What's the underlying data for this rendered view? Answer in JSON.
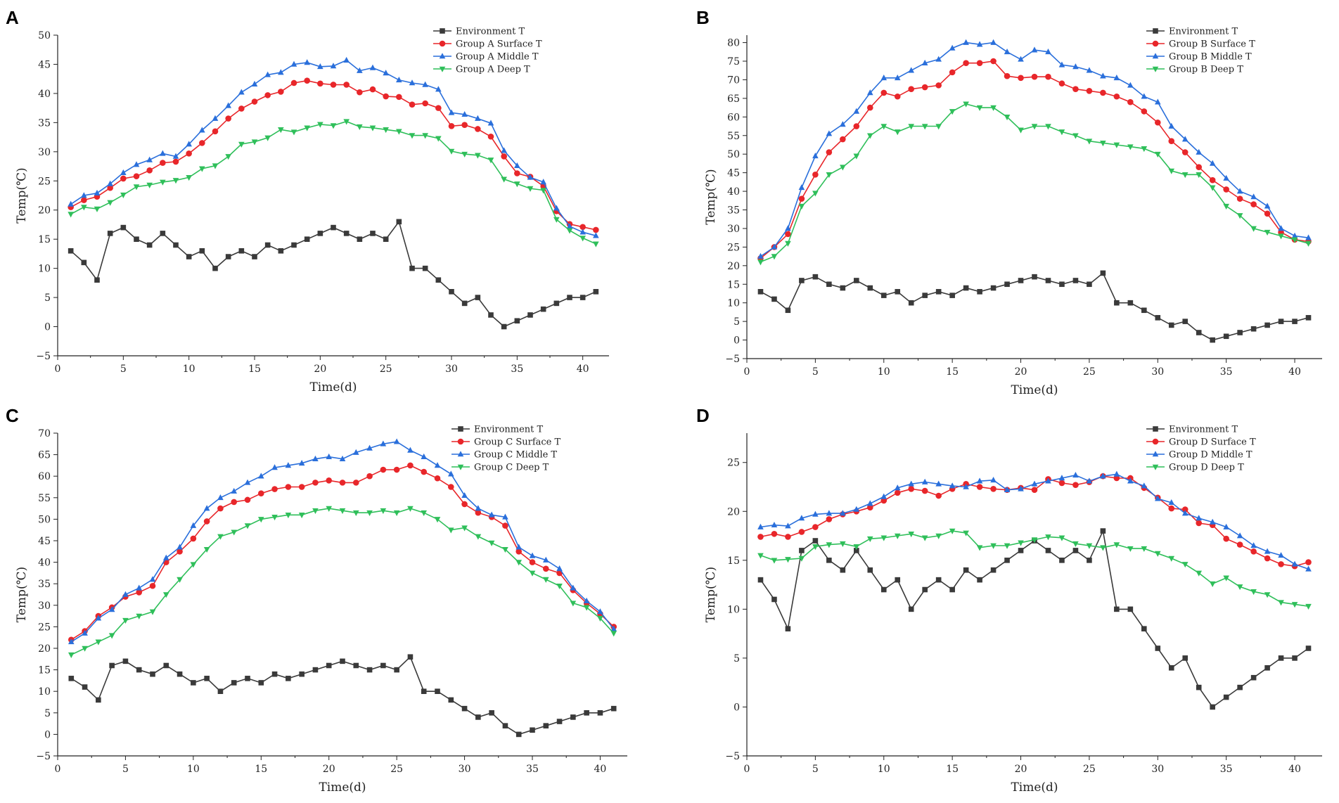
{
  "colors": {
    "environment": "#3a3a3a",
    "surface": "#e8262a",
    "middle": "#2a6fdb",
    "deep": "#2fbf5a"
  },
  "chart_data": [
    {
      "panel": "A",
      "type": "line",
      "xlabel": "Time(d)",
      "ylabel": "Temp(℃)",
      "xlim": [
        0,
        42
      ],
      "ylim": [
        -5,
        50
      ],
      "xticks": [
        0,
        5,
        10,
        15,
        20,
        25,
        30,
        35,
        40
      ],
      "yticks": [
        -5,
        0,
        5,
        10,
        15,
        20,
        25,
        30,
        35,
        40,
        45,
        50
      ],
      "legend": "top-right",
      "x": [
        1,
        2,
        3,
        4,
        5,
        6,
        7,
        8,
        9,
        10,
        11,
        12,
        13,
        14,
        15,
        16,
        17,
        18,
        19,
        20,
        21,
        22,
        23,
        24,
        25,
        26,
        27,
        28,
        29,
        30,
        31,
        32,
        33,
        34,
        35,
        36,
        37,
        38,
        39,
        40,
        41
      ],
      "series": [
        {
          "name": "Environment T",
          "key": "environment",
          "marker": "square",
          "values": [
            13,
            11,
            8,
            16,
            17,
            15,
            14,
            16,
            14,
            12,
            13,
            10,
            12,
            13,
            12,
            14,
            13,
            14,
            15,
            16,
            17,
            16,
            15,
            16,
            15,
            18,
            10,
            10,
            8,
            6,
            4,
            5,
            2,
            0,
            1,
            2,
            3,
            4,
            5,
            5,
            6
          ]
        },
        {
          "name": "Group A Surface T",
          "key": "surface",
          "marker": "circle",
          "values": [
            20.5,
            21.7,
            22.3,
            23.8,
            25.4,
            25.8,
            26.8,
            28.1,
            28.3,
            29.7,
            31.5,
            33.5,
            35.7,
            37.4,
            38.6,
            39.7,
            40.3,
            41.8,
            42.2,
            41.7,
            41.5,
            41.5,
            40.2,
            40.7,
            39.5,
            39.4,
            38.1,
            38.3,
            37.5,
            34.4,
            34.6,
            33.9,
            32.6,
            29.2,
            26.3,
            25.7,
            24.1,
            19.8,
            17.6,
            17.1,
            16.6
          ]
        },
        {
          "name": "Group A Middle T",
          "key": "middle",
          "marker": "triangle-up",
          "values": [
            21.0,
            22.5,
            22.9,
            24.5,
            26.4,
            27.8,
            28.6,
            29.7,
            29.2,
            31.3,
            33.7,
            35.7,
            37.9,
            40.2,
            41.6,
            43.2,
            43.6,
            45.0,
            45.3,
            44.6,
            44.7,
            45.7,
            43.9,
            44.4,
            43.5,
            42.3,
            41.8,
            41.5,
            40.7,
            36.7,
            36.4,
            35.7,
            34.9,
            30.2,
            27.6,
            25.6,
            24.8,
            20.3,
            17.2,
            16.2,
            15.6
          ]
        },
        {
          "name": "Group A Deep T",
          "key": "deep",
          "marker": "triangle-down",
          "values": [
            19.3,
            20.5,
            20.2,
            21.3,
            22.6,
            24.0,
            24.3,
            24.8,
            25.1,
            25.6,
            27.1,
            27.6,
            29.2,
            31.3,
            31.7,
            32.4,
            33.8,
            33.4,
            34.1,
            34.7,
            34.5,
            35.2,
            34.3,
            34.1,
            33.8,
            33.5,
            32.8,
            32.8,
            32.3,
            30.1,
            29.6,
            29.4,
            28.6,
            25.3,
            24.5,
            23.7,
            23.4,
            18.4,
            16.5,
            15.2,
            14.2
          ]
        }
      ]
    },
    {
      "panel": "B",
      "type": "line",
      "xlabel": "Time(d)",
      "ylabel": "Temp(℃)",
      "xlim": [
        0,
        42
      ],
      "ylim": [
        -5,
        82
      ],
      "xticks": [
        0,
        5,
        10,
        15,
        20,
        25,
        30,
        35,
        40
      ],
      "yticks": [
        -5,
        0,
        5,
        10,
        15,
        20,
        25,
        30,
        35,
        40,
        45,
        50,
        55,
        60,
        65,
        70,
        75,
        80
      ],
      "legend": "top-right",
      "x": [
        1,
        2,
        3,
        4,
        5,
        6,
        7,
        8,
        9,
        10,
        11,
        12,
        13,
        14,
        15,
        16,
        17,
        18,
        19,
        20,
        21,
        22,
        23,
        24,
        25,
        26,
        27,
        28,
        29,
        30,
        31,
        32,
        33,
        34,
        35,
        36,
        37,
        38,
        39,
        40,
        41
      ],
      "series": [
        {
          "name": "Environment T",
          "key": "environment",
          "marker": "square",
          "values": [
            13,
            11,
            8,
            16,
            17,
            15,
            14,
            16,
            14,
            12,
            13,
            10,
            12,
            13,
            12,
            14,
            13,
            14,
            15,
            16,
            17,
            16,
            15,
            16,
            15,
            18,
            10,
            10,
            8,
            6,
            4,
            5,
            2,
            0,
            1,
            2,
            3,
            4,
            5,
            5,
            6
          ]
        },
        {
          "name": "Group B Surface T",
          "key": "surface",
          "marker": "circle",
          "values": [
            22.0,
            25.0,
            28.5,
            38.0,
            44.5,
            50.5,
            54.0,
            57.5,
            62.5,
            66.5,
            65.5,
            67.5,
            68.0,
            68.5,
            72.0,
            74.5,
            74.5,
            75.0,
            71.0,
            70.5,
            70.8,
            70.8,
            69.0,
            67.5,
            67.0,
            66.5,
            65.5,
            64.0,
            61.5,
            58.5,
            53.5,
            50.5,
            46.5,
            43.0,
            40.5,
            38.0,
            36.5,
            34.0,
            29.0,
            27.0,
            26.5
          ]
        },
        {
          "name": "Group B Middle T",
          "key": "middle",
          "marker": "triangle-up",
          "values": [
            22.5,
            25.0,
            30.0,
            41.0,
            49.5,
            55.5,
            58.0,
            61.5,
            66.5,
            70.5,
            70.5,
            72.5,
            74.5,
            75.5,
            78.5,
            80.0,
            79.5,
            80.0,
            77.5,
            75.5,
            78.0,
            77.5,
            74.0,
            73.5,
            72.5,
            71.0,
            70.5,
            68.5,
            65.5,
            64.0,
            57.5,
            54.0,
            50.5,
            47.5,
            43.5,
            40.0,
            38.5,
            36.0,
            30.0,
            28.0,
            27.5
          ]
        },
        {
          "name": "Group B Deep T",
          "key": "deep",
          "marker": "triangle-down",
          "values": [
            21.0,
            22.5,
            26.0,
            36.0,
            39.5,
            44.5,
            46.5,
            49.5,
            55.0,
            57.5,
            56.0,
            57.5,
            57.5,
            57.5,
            61.5,
            63.5,
            62.5,
            62.5,
            60.0,
            56.5,
            57.5,
            57.5,
            56.0,
            55.0,
            53.5,
            53.0,
            52.5,
            52.0,
            51.5,
            50.0,
            45.5,
            44.5,
            44.5,
            41.0,
            36.0,
            33.5,
            30.0,
            29.0,
            28.0,
            27.0,
            26.0
          ]
        }
      ]
    },
    {
      "panel": "C",
      "type": "line",
      "xlabel": "Time(d)",
      "ylabel": "Temp(℃)",
      "xlim": [
        0,
        42
      ],
      "ylim": [
        -5,
        70
      ],
      "xticks": [
        0,
        5,
        10,
        15,
        20,
        25,
        30,
        35,
        40
      ],
      "yticks": [
        -5,
        0,
        5,
        10,
        15,
        20,
        25,
        30,
        35,
        40,
        45,
        50,
        55,
        60,
        65,
        70
      ],
      "legend": "top-right",
      "x": [
        1,
        2,
        3,
        4,
        5,
        6,
        7,
        8,
        9,
        10,
        11,
        12,
        13,
        14,
        15,
        16,
        17,
        18,
        19,
        20,
        21,
        22,
        23,
        24,
        25,
        26,
        27,
        28,
        29,
        30,
        31,
        32,
        33,
        34,
        35,
        36,
        37,
        38,
        39,
        40,
        41
      ],
      "series": [
        {
          "name": "Environment T",
          "key": "environment",
          "marker": "square",
          "values": [
            13,
            11,
            8,
            16,
            17,
            15,
            14,
            16,
            14,
            12,
            13,
            10,
            12,
            13,
            12,
            14,
            13,
            14,
            15,
            16,
            17,
            16,
            15,
            16,
            15,
            18,
            10,
            10,
            8,
            6,
            4,
            5,
            2,
            0,
            1,
            2,
            3,
            4,
            5,
            5,
            6
          ]
        },
        {
          "name": "Group C Surface T",
          "key": "surface",
          "marker": "circle",
          "values": [
            22.0,
            24.0,
            27.5,
            29.5,
            32.0,
            33.0,
            34.5,
            40.0,
            42.5,
            45.5,
            49.5,
            52.5,
            54.0,
            54.5,
            56.0,
            57.0,
            57.5,
            57.5,
            58.5,
            59.0,
            58.5,
            58.5,
            60.0,
            61.5,
            61.5,
            62.5,
            61.0,
            59.5,
            57.5,
            53.5,
            51.5,
            50.5,
            48.5,
            42.5,
            40.0,
            38.5,
            37.5,
            33.5,
            30.5,
            28.0,
            25.0
          ]
        },
        {
          "name": "Group C Middle T",
          "key": "middle",
          "marker": "triangle-up",
          "values": [
            21.5,
            23.5,
            27.0,
            29.0,
            32.5,
            34.0,
            36.0,
            41.0,
            43.5,
            48.5,
            52.5,
            55.0,
            56.5,
            58.5,
            60.0,
            62.0,
            62.5,
            63.0,
            64.0,
            64.5,
            64.0,
            65.5,
            66.5,
            67.5,
            68.0,
            66.0,
            64.5,
            62.5,
            60.5,
            55.5,
            52.5,
            51.0,
            50.5,
            43.5,
            41.5,
            40.5,
            38.5,
            34.0,
            31.0,
            28.5,
            24.5
          ]
        },
        {
          "name": "Group C Deep T",
          "key": "deep",
          "marker": "triangle-down",
          "values": [
            18.5,
            20.0,
            21.5,
            23.0,
            26.5,
            27.5,
            28.5,
            32.5,
            36.0,
            39.5,
            43.0,
            46.0,
            47.0,
            48.5,
            50.0,
            50.5,
            51.0,
            51.0,
            52.0,
            52.5,
            52.0,
            51.5,
            51.5,
            52.0,
            51.5,
            52.5,
            51.5,
            50.0,
            47.5,
            48.0,
            46.0,
            44.5,
            43.0,
            40.0,
            37.5,
            36.0,
            34.5,
            30.5,
            29.5,
            27.0,
            23.5
          ]
        }
      ]
    },
    {
      "panel": "D",
      "type": "line",
      "xlabel": "Time(d)",
      "ylabel": "Temp(℃)",
      "xlim": [
        0,
        42
      ],
      "ylim": [
        -5,
        28
      ],
      "xticks": [
        0,
        5,
        10,
        15,
        20,
        25,
        30,
        35,
        40
      ],
      "yticks": [
        -5,
        0,
        5,
        10,
        15,
        20,
        25
      ],
      "legend": "top-right",
      "x": [
        1,
        2,
        3,
        4,
        5,
        6,
        7,
        8,
        9,
        10,
        11,
        12,
        13,
        14,
        15,
        16,
        17,
        18,
        19,
        20,
        21,
        22,
        23,
        24,
        25,
        26,
        27,
        28,
        29,
        30,
        31,
        32,
        33,
        34,
        35,
        36,
        37,
        38,
        39,
        40,
        41
      ],
      "series": [
        {
          "name": "Environment T",
          "key": "environment",
          "marker": "square",
          "values": [
            13,
            11,
            8,
            16,
            17,
            15,
            14,
            16,
            14,
            12,
            13,
            10,
            12,
            13,
            12,
            14,
            13,
            14,
            15,
            16,
            17,
            16,
            15,
            16,
            15,
            18,
            10,
            10,
            8,
            6,
            4,
            5,
            2,
            0,
            1,
            2,
            3,
            4,
            5,
            5,
            6
          ]
        },
        {
          "name": "Group D Surface T",
          "key": "surface",
          "marker": "circle",
          "values": [
            17.4,
            17.7,
            17.4,
            17.9,
            18.4,
            19.2,
            19.7,
            20.0,
            20.4,
            21.1,
            21.9,
            22.3,
            22.1,
            21.6,
            22.3,
            22.8,
            22.5,
            22.3,
            22.2,
            22.4,
            22.2,
            23.3,
            22.9,
            22.7,
            23.0,
            23.6,
            23.4,
            23.4,
            22.4,
            21.4,
            20.3,
            20.2,
            18.8,
            18.6,
            17.2,
            16.6,
            15.9,
            15.2,
            14.6,
            14.4,
            14.8
          ]
        },
        {
          "name": "Group D Middle T",
          "key": "middle",
          "marker": "triangle-up",
          "values": [
            18.4,
            18.6,
            18.5,
            19.3,
            19.7,
            19.8,
            19.8,
            20.2,
            20.8,
            21.5,
            22.4,
            22.8,
            23.0,
            22.8,
            22.6,
            22.5,
            23.1,
            23.2,
            22.2,
            22.3,
            22.8,
            23.1,
            23.4,
            23.7,
            23.1,
            23.6,
            23.8,
            23.1,
            22.6,
            21.3,
            20.9,
            19.8,
            19.3,
            18.9,
            18.4,
            17.5,
            16.5,
            15.9,
            15.5,
            14.6,
            14.1
          ]
        },
        {
          "name": "Group D Deep T",
          "key": "deep",
          "marker": "triangle-down",
          "values": [
            15.5,
            15.0,
            15.1,
            15.2,
            16.4,
            16.6,
            16.7,
            16.4,
            17.2,
            17.3,
            17.5,
            17.7,
            17.3,
            17.5,
            18.0,
            17.8,
            16.3,
            16.5,
            16.5,
            16.8,
            17.1,
            17.4,
            17.3,
            16.7,
            16.5,
            16.3,
            16.6,
            16.2,
            16.2,
            15.7,
            15.2,
            14.6,
            13.7,
            12.6,
            13.2,
            12.3,
            11.8,
            11.5,
            10.7,
            10.5,
            10.3
          ]
        }
      ]
    }
  ]
}
